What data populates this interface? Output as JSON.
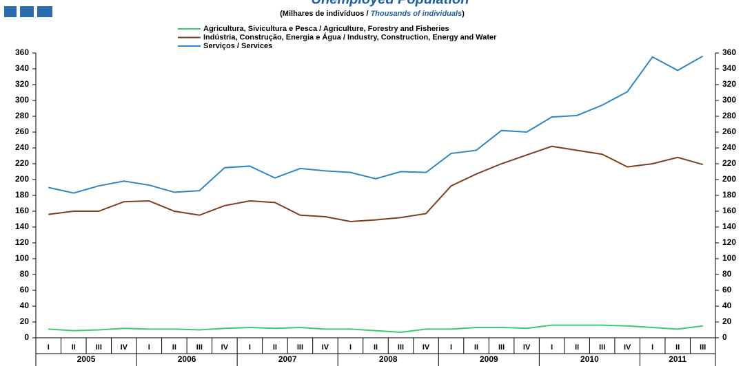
{
  "chart_data": {
    "type": "line",
    "title": "Unemployed Population",
    "subtitle": "(Milhares de indivíduos  / ",
    "subtitle_en": "Thousands of individuals",
    "subtitle_end": ")",
    "categories": [
      "I",
      "II",
      "III",
      "IV",
      "I",
      "II",
      "III",
      "IV",
      "I",
      "II",
      "III",
      "IV",
      "I",
      "II",
      "III",
      "IV",
      "I",
      "II",
      "III",
      "IV",
      "I",
      "II",
      "III",
      "IV",
      "I",
      "II",
      "III"
    ],
    "years": [
      "2005",
      "2006",
      "2007",
      "2008",
      "2009",
      "2010",
      "2011"
    ],
    "series": [
      {
        "name": "Agricultura, Sivicultura e Pesca / Agriculture, Forestry and Fisheries",
        "color": "#3ccc6e",
        "values": [
          11,
          9,
          10,
          12,
          11,
          11,
          10,
          12,
          13,
          12,
          13,
          11,
          11,
          9,
          7,
          11,
          11,
          13,
          13,
          12,
          16,
          16,
          16,
          15,
          13,
          11,
          15
        ]
      },
      {
        "name": "Indústria, Construção, Energia e Água / Industry, Construction, Energy and Water",
        "color": "#7b3f1e",
        "values": [
          156,
          160,
          160,
          172,
          173,
          160,
          155,
          167,
          173,
          171,
          155,
          153,
          147,
          149,
          152,
          157,
          192,
          207,
          220,
          231,
          242,
          237,
          232,
          216,
          220,
          228,
          219
        ]
      },
      {
        "name": "Serviços / Services",
        "color": "#2e86c8",
        "values": [
          190,
          183,
          192,
          198,
          193,
          184,
          186,
          215,
          217,
          202,
          214,
          211,
          209,
          201,
          210,
          209,
          233,
          237,
          262,
          260,
          279,
          281,
          294,
          311,
          355,
          338,
          356
        ]
      }
    ],
    "ylim": [
      0,
      360
    ],
    "yticks": [
      0,
      20,
      40,
      60,
      80,
      100,
      120,
      140,
      160,
      180,
      200,
      220,
      240,
      260,
      280,
      300,
      320,
      340,
      360
    ],
    "y2lim": [
      0,
      360
    ],
    "y2ticks": [
      0,
      20,
      40,
      60,
      80,
      100,
      120,
      140,
      160,
      180,
      200,
      220,
      240,
      260,
      280,
      300,
      320,
      340,
      360
    ]
  }
}
